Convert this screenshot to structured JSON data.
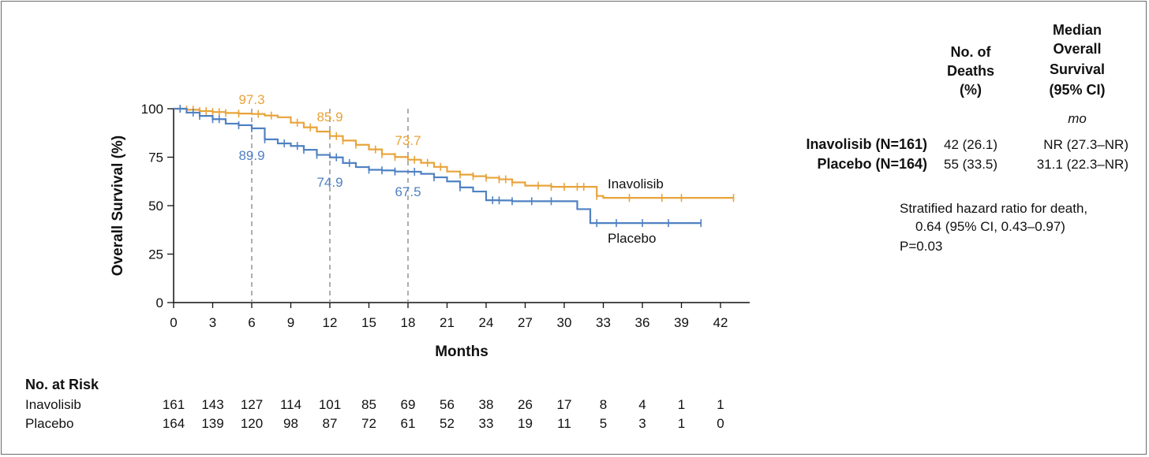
{
  "chart_data": {
    "type": "line",
    "xlabel": "Months",
    "ylabel": "Overall Survival (%)",
    "xlim": [
      0,
      43
    ],
    "ylim": [
      0,
      100
    ],
    "x_ticks": [
      "0",
      "3",
      "6",
      "9",
      "12",
      "15",
      "18",
      "21",
      "24",
      "27",
      "30",
      "33",
      "36",
      "39",
      "42"
    ],
    "y_ticks": [
      "0",
      "25",
      "50",
      "75",
      "100"
    ],
    "grid": false,
    "colors": {
      "inavolisib": "#E8A33A",
      "placebo": "#4F81C2",
      "reference": "#8c8c8c"
    },
    "series": [
      {
        "name": "Inavolisib",
        "color": "#E8A33A",
        "points": [
          [
            0,
            100
          ],
          [
            1,
            99.5
          ],
          [
            2,
            98.8
          ],
          [
            3,
            98.3
          ],
          [
            4,
            97.8
          ],
          [
            5,
            97.5
          ],
          [
            6,
            97.3
          ],
          [
            7,
            96.5
          ],
          [
            8,
            95.6
          ],
          [
            9,
            92.8
          ],
          [
            10,
            90.4
          ],
          [
            11,
            88.2
          ],
          [
            12,
            85.9
          ],
          [
            13,
            83.6
          ],
          [
            14,
            81.4
          ],
          [
            15,
            79.0
          ],
          [
            16,
            76.6
          ],
          [
            17,
            75.1
          ],
          [
            18,
            73.7
          ],
          [
            19,
            72.1
          ],
          [
            20,
            70.0
          ],
          [
            21,
            67.6
          ],
          [
            22,
            66.0
          ],
          [
            23,
            65.2
          ],
          [
            24,
            64.4
          ],
          [
            25,
            63.6
          ],
          [
            26,
            62.0
          ],
          [
            27,
            60.3
          ],
          [
            28,
            60.3
          ],
          [
            29,
            59.7
          ],
          [
            30,
            59.7
          ],
          [
            31,
            59.7
          ],
          [
            32,
            59.7
          ],
          [
            32.5,
            55
          ],
          [
            33,
            54
          ],
          [
            43,
            54
          ]
        ],
        "censor_x": [
          0.5,
          1,
          1.5,
          2,
          2.5,
          3,
          3.5,
          4,
          5,
          6.5,
          7.5,
          9.5,
          10.5,
          12.5,
          13,
          14,
          15.5,
          16,
          17,
          18.5,
          19.5,
          20.5,
          22,
          23,
          24,
          25,
          25.5,
          26,
          28,
          29,
          30,
          31,
          31.5,
          32.5,
          35,
          37.5,
          39,
          43
        ]
      },
      {
        "name": "Placebo",
        "color": "#4F81C2",
        "points": [
          [
            0,
            100
          ],
          [
            1,
            98
          ],
          [
            2,
            96.3
          ],
          [
            3,
            94.6
          ],
          [
            4,
            92.3
          ],
          [
            5,
            91.5
          ],
          [
            6,
            89.9
          ],
          [
            7,
            84.2
          ],
          [
            8,
            82.1
          ],
          [
            9,
            80.8
          ],
          [
            10,
            78.8
          ],
          [
            11,
            76.2
          ],
          [
            12,
            74.9
          ],
          [
            13,
            72.0
          ],
          [
            14,
            69.9
          ],
          [
            15,
            68.5
          ],
          [
            16,
            68.2
          ],
          [
            17,
            67.6
          ],
          [
            18,
            67.5
          ],
          [
            19,
            66.4
          ],
          [
            20,
            64.6
          ],
          [
            21,
            62.5
          ],
          [
            22,
            59.4
          ],
          [
            23,
            57.3
          ],
          [
            24,
            52.8
          ],
          [
            25,
            52.7
          ],
          [
            26,
            52.3
          ],
          [
            27,
            52.3
          ],
          [
            28,
            52.3
          ],
          [
            29,
            52.3
          ],
          [
            30,
            52.3
          ],
          [
            31,
            48.2
          ],
          [
            32,
            41
          ],
          [
            40.5,
            41
          ]
        ],
        "censor_x": [
          0.5,
          1.5,
          2,
          3,
          3.5,
          5,
          6,
          7,
          8.5,
          9.5,
          10,
          11,
          12.5,
          13.5,
          15,
          16,
          17,
          18.5,
          20,
          22,
          24.5,
          25,
          26,
          27.5,
          29,
          32.5,
          34,
          36,
          38,
          40.5
        ]
      }
    ],
    "annotations": [
      {
        "x": 6,
        "text": "97.3",
        "series": "inavolisib"
      },
      {
        "x": 12,
        "text": "85.9",
        "series": "inavolisib"
      },
      {
        "x": 18,
        "text": "73.7",
        "series": "inavolisib"
      },
      {
        "x": 6,
        "text": "89.9",
        "series": "placebo"
      },
      {
        "x": 12,
        "text": "74.9",
        "series": "placebo"
      },
      {
        "x": 18,
        "text": "67.5",
        "series": "placebo"
      }
    ],
    "reference_lines_x": [
      6,
      12,
      18
    ],
    "line_labels": {
      "inavolisib": "Inavolisib",
      "placebo": "Placebo"
    }
  },
  "summary_table": {
    "headers": {
      "deaths": [
        "No. of",
        "Deaths",
        "(%)"
      ],
      "median": [
        "Median",
        "Overall",
        "Survival",
        "(95% CI)"
      ],
      "unit": "mo"
    },
    "rows": [
      {
        "label": "Inavolisib (N=161)",
        "deaths": "42 (26.1)",
        "median": "NR (27.3–NR)"
      },
      {
        "label": "Placebo (N=164)",
        "deaths": "55 (33.5)",
        "median": "31.1 (22.3–NR)"
      }
    ],
    "hazard_lines": [
      "Stratified hazard ratio for death,",
      "0.64 (95% CI, 0.43–0.97)",
      "P=0.03"
    ]
  },
  "risk_table": {
    "title": "No. at Risk",
    "rows": [
      {
        "label": "Inavolisib",
        "values": [
          "161",
          "143",
          "127",
          "114",
          "101",
          "85",
          "69",
          "56",
          "38",
          "26",
          "17",
          "8",
          "4",
          "1",
          "1"
        ]
      },
      {
        "label": "Placebo",
        "values": [
          "164",
          "139",
          "120",
          "98",
          "87",
          "72",
          "61",
          "52",
          "33",
          "19",
          "11",
          "5",
          "3",
          "1",
          "0"
        ]
      }
    ]
  }
}
